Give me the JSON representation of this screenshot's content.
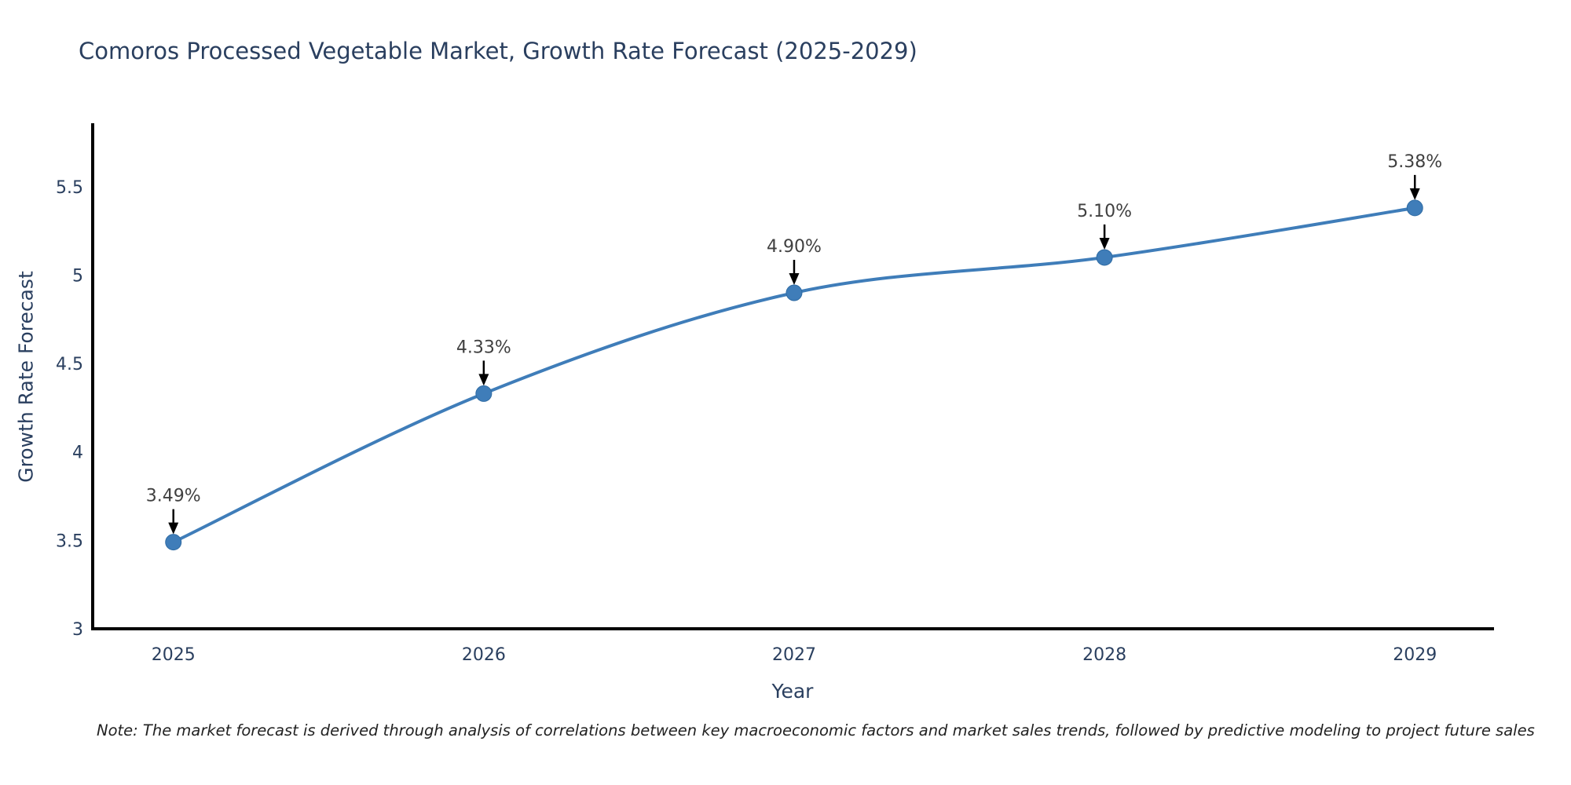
{
  "page": {
    "background": "#ffffff"
  },
  "chart_data": {
    "type": "line",
    "title": "Comoros Processed Vegetable Market, Growth Rate Forecast (2025-2029)",
    "xlabel": "Year",
    "ylabel": "Growth Rate Forecast",
    "x": [
      2025,
      2026,
      2027,
      2028,
      2029
    ],
    "y": [
      3.49,
      4.33,
      4.9,
      5.1,
      5.38
    ],
    "point_labels": [
      "3.49%",
      "4.33%",
      "4.90%",
      "5.10%",
      "5.38%"
    ],
    "xtick_labels": [
      "2025",
      "2026",
      "2027",
      "2028",
      "2029"
    ],
    "ytick_values": [
      3,
      3.5,
      4,
      4.5,
      5,
      5.5
    ],
    "ytick_labels": [
      "3",
      "3.5",
      "4",
      "4.5",
      "5",
      "5.5"
    ],
    "xlim": [
      2024.74,
      2029.25
    ],
    "ylim": [
      3,
      5.85
    ],
    "line_shape": "spline",
    "grid": false,
    "legend_position": "none",
    "colors": {
      "line": "#3f7db9",
      "marker": "#3f7db9",
      "marker_edge": "#2f6ba3",
      "axis_line": "#000000",
      "tick_label": "#2a3f5f",
      "title": "#2a3f5f",
      "annotation_text": "#404040",
      "annotation_arrow": "#000000"
    }
  },
  "note": {
    "text": "Note: The market forecast is derived through analysis of correlations between key macroeconomic factors and market sales trends, followed by predictive modeling to project future sales"
  }
}
